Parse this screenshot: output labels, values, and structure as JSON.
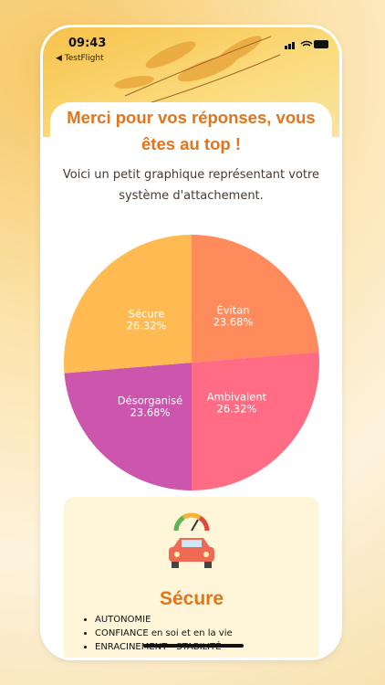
{
  "status": {
    "time": "09:43",
    "back": "◀ TestFlight"
  },
  "header": {
    "title": "Merci pour vos réponses, vous êtes au top !",
    "subtitle": "Voici un petit graphique représentant votre système d'attachement."
  },
  "chart_data": {
    "type": "pie",
    "categories": [
      "Évitan",
      "Ambivalent",
      "Désorganisé",
      "Sécure"
    ],
    "values": [
      23.68,
      26.32,
      23.68,
      26.32
    ],
    "value_labels": [
      "23.68%",
      "26.32%",
      "23.68%",
      "26.32%"
    ],
    "colors": [
      "#ff8a5c",
      "#ff6c84",
      "#cc56ad",
      "#ffbb52"
    ]
  },
  "card": {
    "title": "Sécure",
    "items": [
      "AUTONOMIE",
      "CONFIANCE en soi et en la vie",
      "ENRACINEMENT - STABILITÉ"
    ]
  }
}
